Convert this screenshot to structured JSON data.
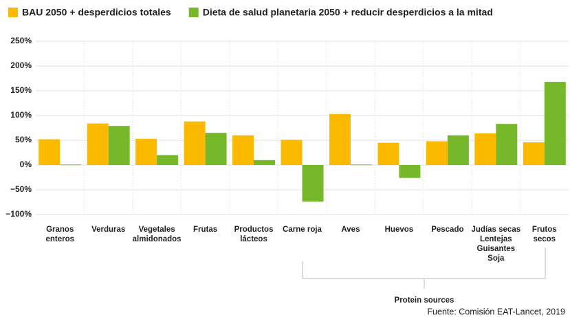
{
  "chart_data": {
    "type": "bar",
    "categories": [
      "Granos\nenteros",
      "Verduras",
      "Vegetales\nalmidonados",
      "Frutas",
      "Productos\nlácteos",
      "Carne roja",
      "Aves",
      "Huevos",
      "Pescado",
      "Judías secas\nLentejas\nGuisantes\nSoja",
      "Frutos\nsecos"
    ],
    "series": [
      {
        "name": "BAU 2050 + desperdicios totales",
        "color": "#fbb900",
        "values": [
          52,
          84,
          53,
          88,
          60,
          51,
          103,
          45,
          48,
          64,
          46
        ]
      },
      {
        "name": "Dieta de salud planetaria 2050 + reducir desperdicios a la mitad",
        "color": "#76b82a",
        "values": [
          1,
          79,
          20,
          65,
          10,
          -74,
          1,
          -26,
          60,
          83,
          168
        ]
      }
    ],
    "ylim": [
      -100,
      250
    ],
    "yticks": [
      {
        "value": -100,
        "label": "−100%"
      },
      {
        "value": -50,
        "label": "−50%"
      },
      {
        "value": 0,
        "label": "0%"
      },
      {
        "value": 50,
        "label": "50%"
      },
      {
        "value": 100,
        "label": "100%"
      },
      {
        "value": 150,
        "label": "150%"
      },
      {
        "value": 200,
        "label": "200%"
      },
      {
        "value": 250,
        "label": "250%"
      }
    ],
    "grid": true,
    "annotations": [
      "Protein sources"
    ],
    "source": "Fuente: Comisión EAT-Lancet, 2019"
  }
}
